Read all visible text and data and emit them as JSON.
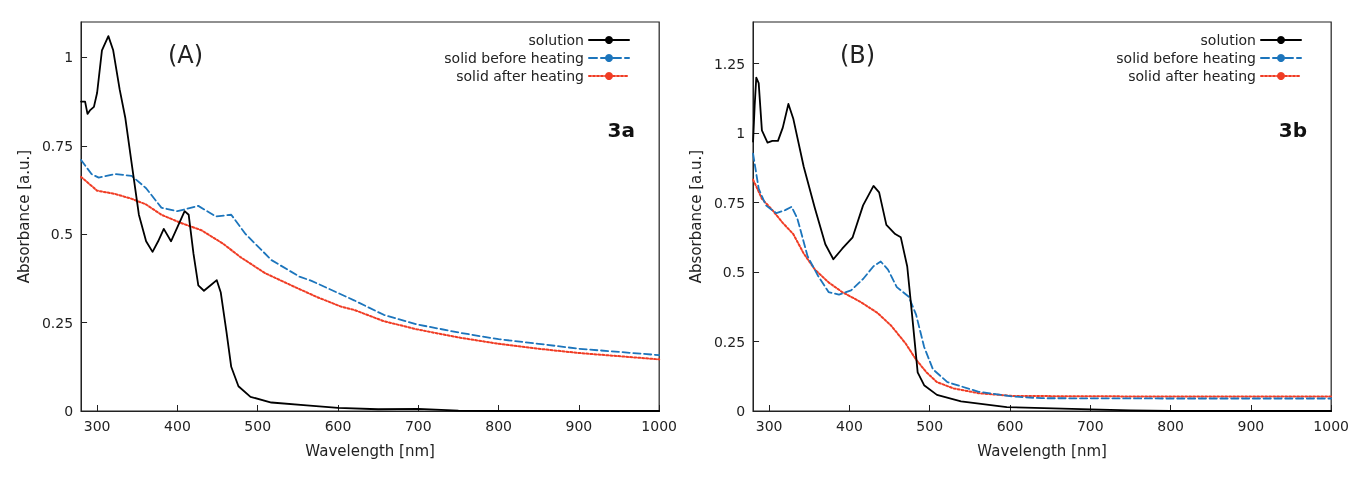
{
  "chart_data": [
    {
      "type": "line",
      "title": "(A)",
      "xlabel": "Wavelength [nm]",
      "ylabel": "Absorbance [a.u.]",
      "annotations": [
        "3a"
      ],
      "xlim": [
        280,
        1000
      ],
      "xticks": [
        300,
        400,
        500,
        600,
        700,
        800,
        900,
        1000
      ],
      "ylim": [
        0,
        1.1
      ],
      "yticks": [
        0,
        0.25,
        0.5,
        0.75,
        1
      ],
      "grid": false,
      "legend": "top right",
      "marker": "none",
      "series": [
        {
          "name": "solution",
          "color": "#000000",
          "line_style": "solid",
          "x": [
            280,
            285,
            288,
            291,
            296,
            300,
            306,
            314,
            320,
            328,
            335,
            343,
            352,
            361,
            369,
            376,
            383,
            392,
            400,
            409,
            414,
            420,
            426,
            433,
            441,
            449,
            454,
            461,
            467,
            476,
            491,
            517,
            561,
            600,
            650,
            700,
            750,
            800,
            900,
            1000
          ],
          "values": [
            0.875,
            0.875,
            0.84,
            0.85,
            0.86,
            0.9,
            1.02,
            1.06,
            1.02,
            0.91,
            0.83,
            0.7,
            0.555,
            0.48,
            0.45,
            0.48,
            0.515,
            0.48,
            0.52,
            0.565,
            0.555,
            0.445,
            0.355,
            0.34,
            0.355,
            0.37,
            0.335,
            0.225,
            0.125,
            0.07,
            0.04,
            0.024,
            0.016,
            0.009,
            0.005,
            0.006,
            0.001,
            0,
            0,
            0
          ]
        },
        {
          "name": "solid before heating",
          "color": "#1c75bc",
          "line_style": "dashed",
          "x": [
            280,
            293,
            302,
            322,
            343,
            361,
            380,
            400,
            426,
            448,
            467,
            485,
            517,
            552,
            567,
            620,
            657,
            698,
            750,
            800,
            850,
            900,
            1000
          ],
          "values": [
            0.71,
            0.67,
            0.66,
            0.67,
            0.665,
            0.63,
            0.575,
            0.565,
            0.58,
            0.55,
            0.555,
            0.5,
            0.427,
            0.38,
            0.368,
            0.313,
            0.272,
            0.245,
            0.222,
            0.203,
            0.19,
            0.176,
            0.158
          ]
        },
        {
          "name": "solid after heating",
          "color": "#f03c24",
          "line_style": "dotted",
          "x": [
            280,
            300,
            322,
            343,
            361,
            380,
            404,
            430,
            457,
            478,
            509,
            543,
            574,
            604,
            620,
            657,
            698,
            750,
            800,
            850,
            900,
            1000
          ],
          "values": [
            0.662,
            0.623,
            0.614,
            0.6,
            0.584,
            0.555,
            0.532,
            0.511,
            0.473,
            0.436,
            0.39,
            0.354,
            0.322,
            0.295,
            0.286,
            0.254,
            0.231,
            0.208,
            0.19,
            0.176,
            0.164,
            0.146
          ]
        }
      ]
    },
    {
      "type": "line",
      "title": "(B)",
      "xlabel": "Wavelength [nm]",
      "ylabel": "Absorbance [a.u.]",
      "annotations": [
        "3b"
      ],
      "xlim": [
        280,
        1000
      ],
      "xticks": [
        300,
        400,
        500,
        600,
        700,
        800,
        900,
        1000
      ],
      "ylim": [
        0,
        1.4
      ],
      "yticks": [
        0,
        0.25,
        0.5,
        0.75,
        1,
        1.25
      ],
      "grid": false,
      "legend": "top right",
      "marker": "none",
      "series": [
        {
          "name": "solution",
          "color": "#000000",
          "line_style": "solid",
          "x": [
            280,
            282,
            284,
            287,
            291,
            298,
            304,
            311,
            317,
            324,
            330,
            343,
            357,
            370,
            380,
            391,
            404,
            417,
            430,
            437,
            446,
            457,
            464,
            472,
            478,
            485,
            493,
            509,
            539,
            596,
            700,
            750,
            800,
            1000
          ],
          "values": [
            0.97,
            1.1,
            1.2,
            1.18,
            1.01,
            0.966,
            0.972,
            0.972,
            1.02,
            1.105,
            1.053,
            0.88,
            0.73,
            0.6,
            0.546,
            0.584,
            0.625,
            0.74,
            0.81,
            0.787,
            0.67,
            0.637,
            0.625,
            0.52,
            0.347,
            0.139,
            0.093,
            0.058,
            0.035,
            0.014,
            0.006,
            0.002,
            0,
            0
          ]
        },
        {
          "name": "solid before heating",
          "color": "#1c75bc",
          "line_style": "dashed",
          "x": [
            280,
            287,
            296,
            309,
            320,
            328,
            335,
            348,
            361,
            374,
            387,
            402,
            417,
            430,
            439,
            448,
            459,
            474,
            483,
            493,
            504,
            522,
            561,
            604,
            639,
            800,
            1000
          ],
          "values": [
            0.926,
            0.8,
            0.74,
            0.712,
            0.723,
            0.735,
            0.694,
            0.556,
            0.486,
            0.428,
            0.419,
            0.434,
            0.475,
            0.521,
            0.538,
            0.509,
            0.446,
            0.411,
            0.347,
            0.231,
            0.15,
            0.104,
            0.069,
            0.052,
            0.046,
            0.045,
            0.045
          ]
        },
        {
          "name": "solid after heating",
          "color": "#f03c24",
          "line_style": "dotted",
          "x": [
            280,
            291,
            304,
            317,
            330,
            343,
            357,
            374,
            391,
            413,
            435,
            452,
            470,
            483,
            496,
            509,
            530,
            561,
            604,
            800,
            1000
          ],
          "values": [
            0.833,
            0.764,
            0.723,
            0.677,
            0.637,
            0.567,
            0.509,
            0.463,
            0.428,
            0.394,
            0.353,
            0.307,
            0.243,
            0.185,
            0.139,
            0.104,
            0.081,
            0.064,
            0.054,
            0.052,
            0.052
          ]
        }
      ]
    }
  ]
}
